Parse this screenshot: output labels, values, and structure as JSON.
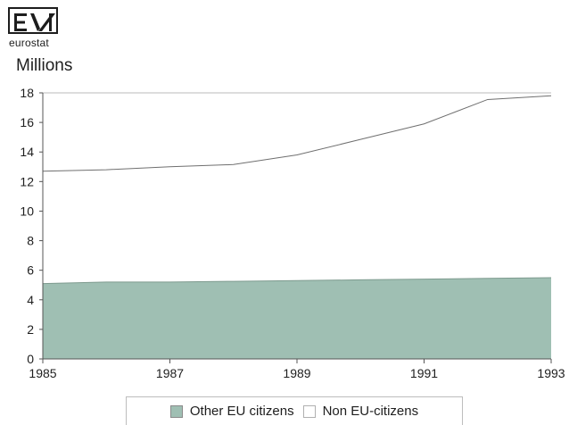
{
  "logo": {
    "text": "eurostat",
    "name": "eurostat-logo"
  },
  "unit_label": "Millions",
  "chart_data": {
    "type": "area",
    "x": [
      1985,
      1986,
      1987,
      1988,
      1989,
      1990,
      1991,
      1992,
      1993
    ],
    "series": [
      {
        "name": "Other EU citizens",
        "values": [
          5.1,
          5.2,
          5.2,
          5.25,
          5.3,
          5.35,
          5.4,
          5.45,
          5.5
        ],
        "color": "#9fbfb3"
      },
      {
        "name": "Non EU-citizens",
        "values": [
          7.6,
          7.6,
          7.8,
          7.9,
          8.5,
          9.5,
          10.5,
          12.1,
          12.3
        ],
        "color": "#ffffff"
      }
    ],
    "stacked": true,
    "x_ticks": [
      "1985",
      "1987",
      "1989",
      "1991",
      "1993"
    ],
    "y_ticks": [
      "0",
      "2",
      "4",
      "6",
      "8",
      "10",
      "12",
      "14",
      "16",
      "18"
    ],
    "xlim": [
      1985,
      1993
    ],
    "ylim": [
      0,
      18
    ],
    "grid": false,
    "legend_position": "bottom"
  },
  "legend": {
    "items": [
      {
        "label": "Other EU citizens",
        "style": "shaded"
      },
      {
        "label": "Non EU-citizens",
        "style": "plain"
      }
    ]
  },
  "colors": {
    "shaded_fill": "#9fbfb3",
    "line": "#6f6f6f",
    "axis": "#555555"
  }
}
